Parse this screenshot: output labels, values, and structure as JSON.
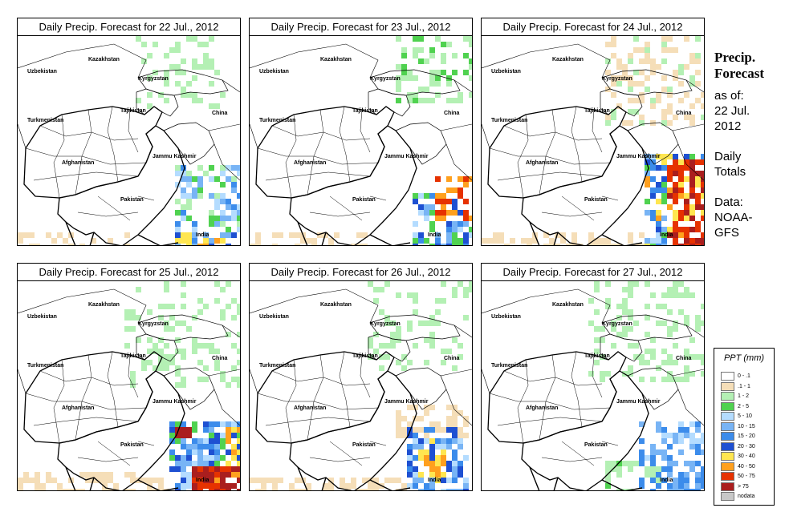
{
  "panels": [
    {
      "title": "Daily Precip. Forecast for  22 Jul., 2012",
      "seed": 11,
      "pattern": "p22"
    },
    {
      "title": "Daily Precip. Forecast for  23 Jul., 2012",
      "seed": 23,
      "pattern": "p23"
    },
    {
      "title": "Daily Precip. Forecast for  24 Jul., 2012",
      "seed": 37,
      "pattern": "p24"
    },
    {
      "title": "Daily Precip. Forecast for  25 Jul., 2012",
      "seed": 41,
      "pattern": "p25"
    },
    {
      "title": "Daily Precip. Forecast for  26 Jul., 2012",
      "seed": 53,
      "pattern": "p26"
    },
    {
      "title": "Daily Precip. Forecast for  27 Jul., 2012",
      "seed": 67,
      "pattern": "p27"
    }
  ],
  "map_labels": {
    "kazakhstan": "Kazakhstan",
    "uzbekistan": "Uzbekistan",
    "kyrgyzstan": "Kyrgyzstan",
    "tajikistan": "Tajikistan",
    "china": "China",
    "turkmenistan": "Turkmenistan",
    "jammu_kashmir": "Jammu Kashmir",
    "afghanistan": "Afghanistan",
    "pakistan": "Pakistan",
    "india": "India"
  },
  "side_panel": {
    "title_line1": "Precip.",
    "title_line2": "Forecast",
    "asof_line1": "as of:",
    "asof_line2": "22 Jul.",
    "asof_line3": "2012",
    "daily_line1": "Daily",
    "daily_line2": "Totals",
    "data_line1": "Data:",
    "data_line2": "NOAA-",
    "data_line3": "GFS"
  },
  "legend": {
    "title": "PPT (mm)",
    "items": [
      {
        "label": "0 - .1",
        "color": "#ffffff"
      },
      {
        "label": ".1 - 1",
        "color": "#f5deb8"
      },
      {
        "label": "1 - 2",
        "color": "#b4f0b4"
      },
      {
        "label": "2 - 5",
        "color": "#50d250"
      },
      {
        "label": "5 - 10",
        "color": "#b4dcff"
      },
      {
        "label": "10 - 15",
        "color": "#78b4f5"
      },
      {
        "label": "15 - 20",
        "color": "#3c8ceb"
      },
      {
        "label": "20 - 30",
        "color": "#1e50d2"
      },
      {
        "label": "30 - 40",
        "color": "#ffe650"
      },
      {
        "label": "40 - 50",
        "color": "#ffa01e"
      },
      {
        "label": "50 - 75",
        "color": "#e63200"
      },
      {
        "label": "> 75",
        "color": "#aa1e1e"
      },
      {
        "label": "nodata",
        "color": "#c8c8c8"
      }
    ]
  }
}
